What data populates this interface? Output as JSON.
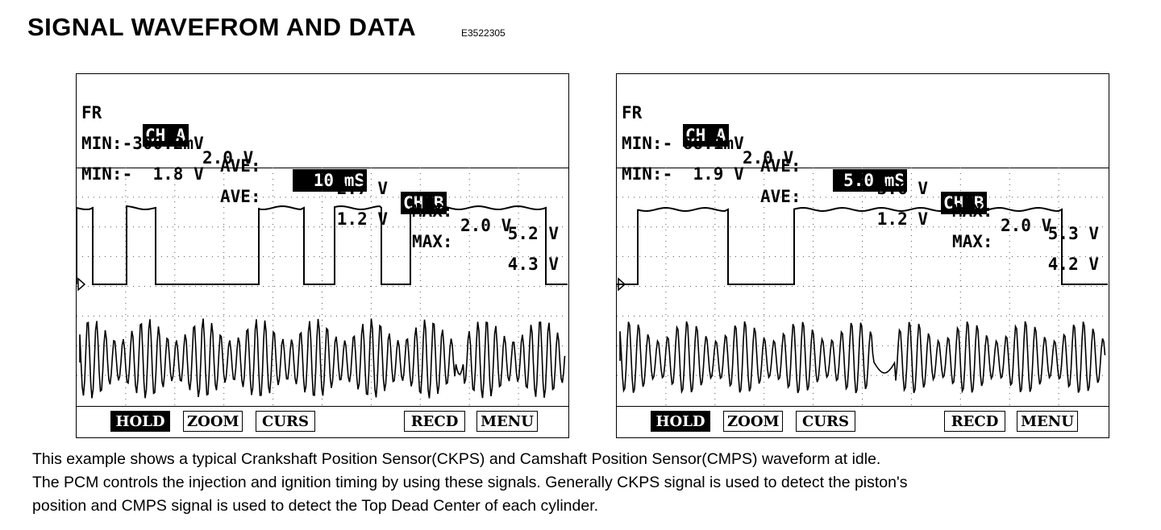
{
  "header": {
    "title": "SIGNAL WAVEFROM AND DATA",
    "code": "E3522305"
  },
  "scopes": [
    {
      "fr": "FR",
      "cha_label": "CH A",
      "cha_scale": "2.0 V",
      "timebase": "10 mS",
      "chb_label": "CH B",
      "chb_scale": "2.0 V",
      "a_min": "MIN:-300.2mV",
      "a_ave_label": "AVE:",
      "a_ave": "2.7 V",
      "a_max_label": "MAX:",
      "a_max": "5.2 V",
      "b_min": "MIN:-  1.8 V",
      "b_ave_label": "AVE:",
      "b_ave": "1.2 V",
      "b_max_label": "MAX:",
      "b_max": "4.3 V",
      "buttons": {
        "hold": "HOLD",
        "zoom": "ZOOM",
        "curs": "CURS",
        "recd": "RECD",
        "menu": "MENU"
      }
    },
    {
      "fr": "FR",
      "cha_label": "CH A",
      "cha_scale": "2.0 V",
      "timebase": "5.0 mS",
      "chb_label": "CH B",
      "chb_scale": "2.0 V",
      "a_min": "MIN:- 88.1mV",
      "a_ave_label": "AVE:",
      "a_ave": "3.6 V",
      "a_max_label": "MAX:",
      "a_max": "5.3 V",
      "b_min": "MIN:-  1.9 V",
      "b_ave_label": "AVE:",
      "b_ave": "1.2 V",
      "b_max_label": "MAX:",
      "b_max": "4.2 V",
      "buttons": {
        "hold": "HOLD",
        "zoom": "ZOOM",
        "curs": "CURS",
        "recd": "RECD",
        "menu": "MENU"
      }
    }
  ],
  "caption": {
    "line1": "This example shows a typical Crankshaft Position Sensor(CKPS) and Camshaft Position Sensor(CMPS) waveform at idle.",
    "line2": "The PCM controls the injection and ignition timing by using these signals.  Generally CKPS signal is used to detect the piston's",
    "line3": "position and CMPS signal is used to detect the Top Dead Center of each cylinder."
  }
}
